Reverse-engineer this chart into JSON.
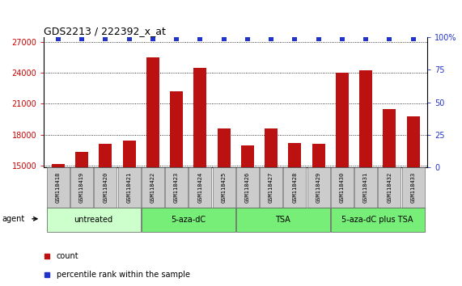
{
  "title": "GDS2213 / 222392_x_at",
  "samples": [
    "GSM118418",
    "GSM118419",
    "GSM118420",
    "GSM118421",
    "GSM118422",
    "GSM118423",
    "GSM118424",
    "GSM118425",
    "GSM118426",
    "GSM118427",
    "GSM118428",
    "GSM118429",
    "GSM118430",
    "GSM118431",
    "GSM118432",
    "GSM118433"
  ],
  "counts": [
    15100,
    16300,
    17100,
    17400,
    25500,
    22200,
    24500,
    18600,
    16900,
    18600,
    17200,
    17100,
    24000,
    24300,
    20500,
    19800
  ],
  "percentile_ranks": [
    99,
    99,
    99,
    99,
    99,
    99,
    99,
    99,
    99,
    99,
    99,
    99,
    99,
    99,
    99,
    99
  ],
  "ylim_left": [
    14800,
    27500
  ],
  "ylim_right": [
    0,
    100
  ],
  "yticks_left": [
    15000,
    18000,
    21000,
    24000,
    27000
  ],
  "yticks_right": [
    0,
    25,
    50,
    75,
    100
  ],
  "bar_color": "#bb1111",
  "scatter_color": "#2233cc",
  "bg_color": "#ffffff",
  "groups": [
    {
      "label": "untreated",
      "start": 0,
      "end": 3,
      "color": "#ccffcc"
    },
    {
      "label": "5-aza-dC",
      "start": 4,
      "end": 7,
      "color": "#77ee77"
    },
    {
      "label": "TSA",
      "start": 8,
      "end": 11,
      "color": "#77ee77"
    },
    {
      "label": "5-aza-dC plus TSA",
      "start": 12,
      "end": 15,
      "color": "#77ee77"
    }
  ],
  "legend_bar_label": "count",
  "legend_scatter_label": "percentile rank within the sample",
  "agent_label": "agent",
  "right_axis_color": "#2233cc",
  "left_axis_color": "#cc0000",
  "sample_box_color": "#cccccc",
  "title_fontsize": 9,
  "tick_fontsize": 7,
  "sample_fontsize": 5,
  "group_fontsize": 7,
  "legend_fontsize": 7
}
